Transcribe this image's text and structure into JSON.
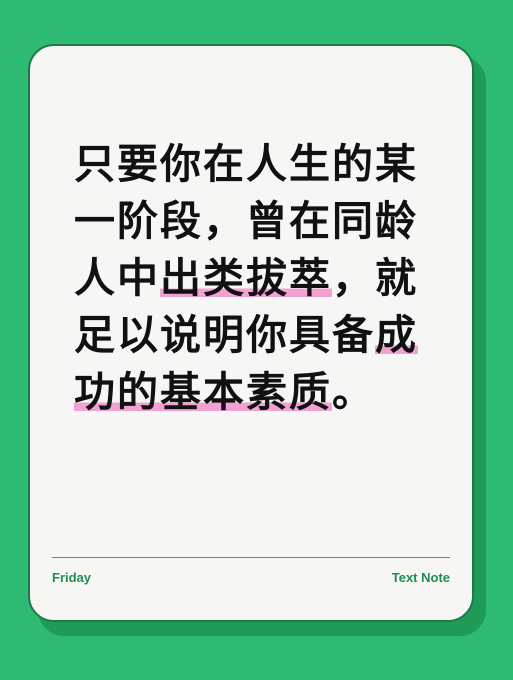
{
  "quote": {
    "line1": "只要你在人生的某",
    "line2": "一阶段，曾在同龄",
    "line3_pre": "人中",
    "line3_hl": "出类拔萃",
    "line3_post": "，就",
    "line4_pre": "足以说明你具备",
    "line4_hl": "成",
    "line5_hl": "功的基本素质",
    "line5_post": "。"
  },
  "footer": {
    "left": "Friday",
    "right": "Text Note"
  },
  "colors": {
    "background": "#2fba74",
    "card": "#f6f6f4",
    "highlight": "#f1a2d2",
    "accent": "#1f8e50"
  }
}
